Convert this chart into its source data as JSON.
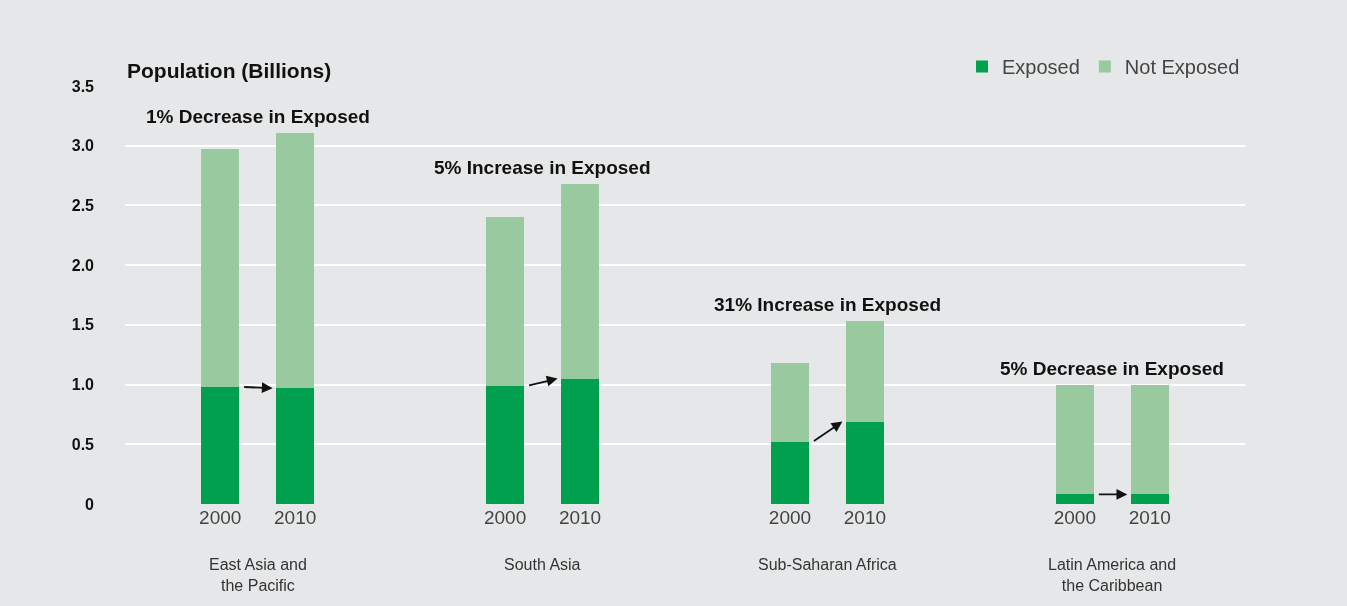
{
  "chart_data": {
    "type": "bar",
    "stacked": true,
    "ylabel": "Population (Billions)",
    "categories": [
      "2000",
      "2010",
      "2000",
      "2010",
      "2000",
      "2010",
      "2000",
      "2010"
    ],
    "series": [
      {
        "name": "Exposed",
        "color": "#00a04f",
        "values": [
          0.98,
          0.97,
          0.99,
          1.05,
          0.52,
          0.69,
          0.08,
          0.08
        ]
      },
      {
        "name": "Not Exposed",
        "color": "#98c99f",
        "values": [
          1.99,
          2.14,
          1.41,
          1.63,
          0.66,
          0.84,
          0.92,
          0.92
        ]
      }
    ],
    "annotations": [
      "1% Decrease in Exposed",
      "5% Increase in Exposed",
      "31% Increase in Exposed",
      "5% Decrease in Exposed",
      "East Asia and\nthe Pacific",
      "South Asia",
      "Sub-Saharan Africa",
      "Latin America and\nthe Caribbean"
    ],
    "ylim": [
      0,
      3.5
    ],
    "yticks": [
      0,
      0.5,
      {
        "value": 1,
        "label": "1.0"
      },
      1.5,
      {
        "value": 2,
        "label": "2.0"
      },
      2.5,
      {
        "value": 3,
        "label": "3.0"
      },
      3.5
    ],
    "grid": "y",
    "legend": "top right"
  }
}
